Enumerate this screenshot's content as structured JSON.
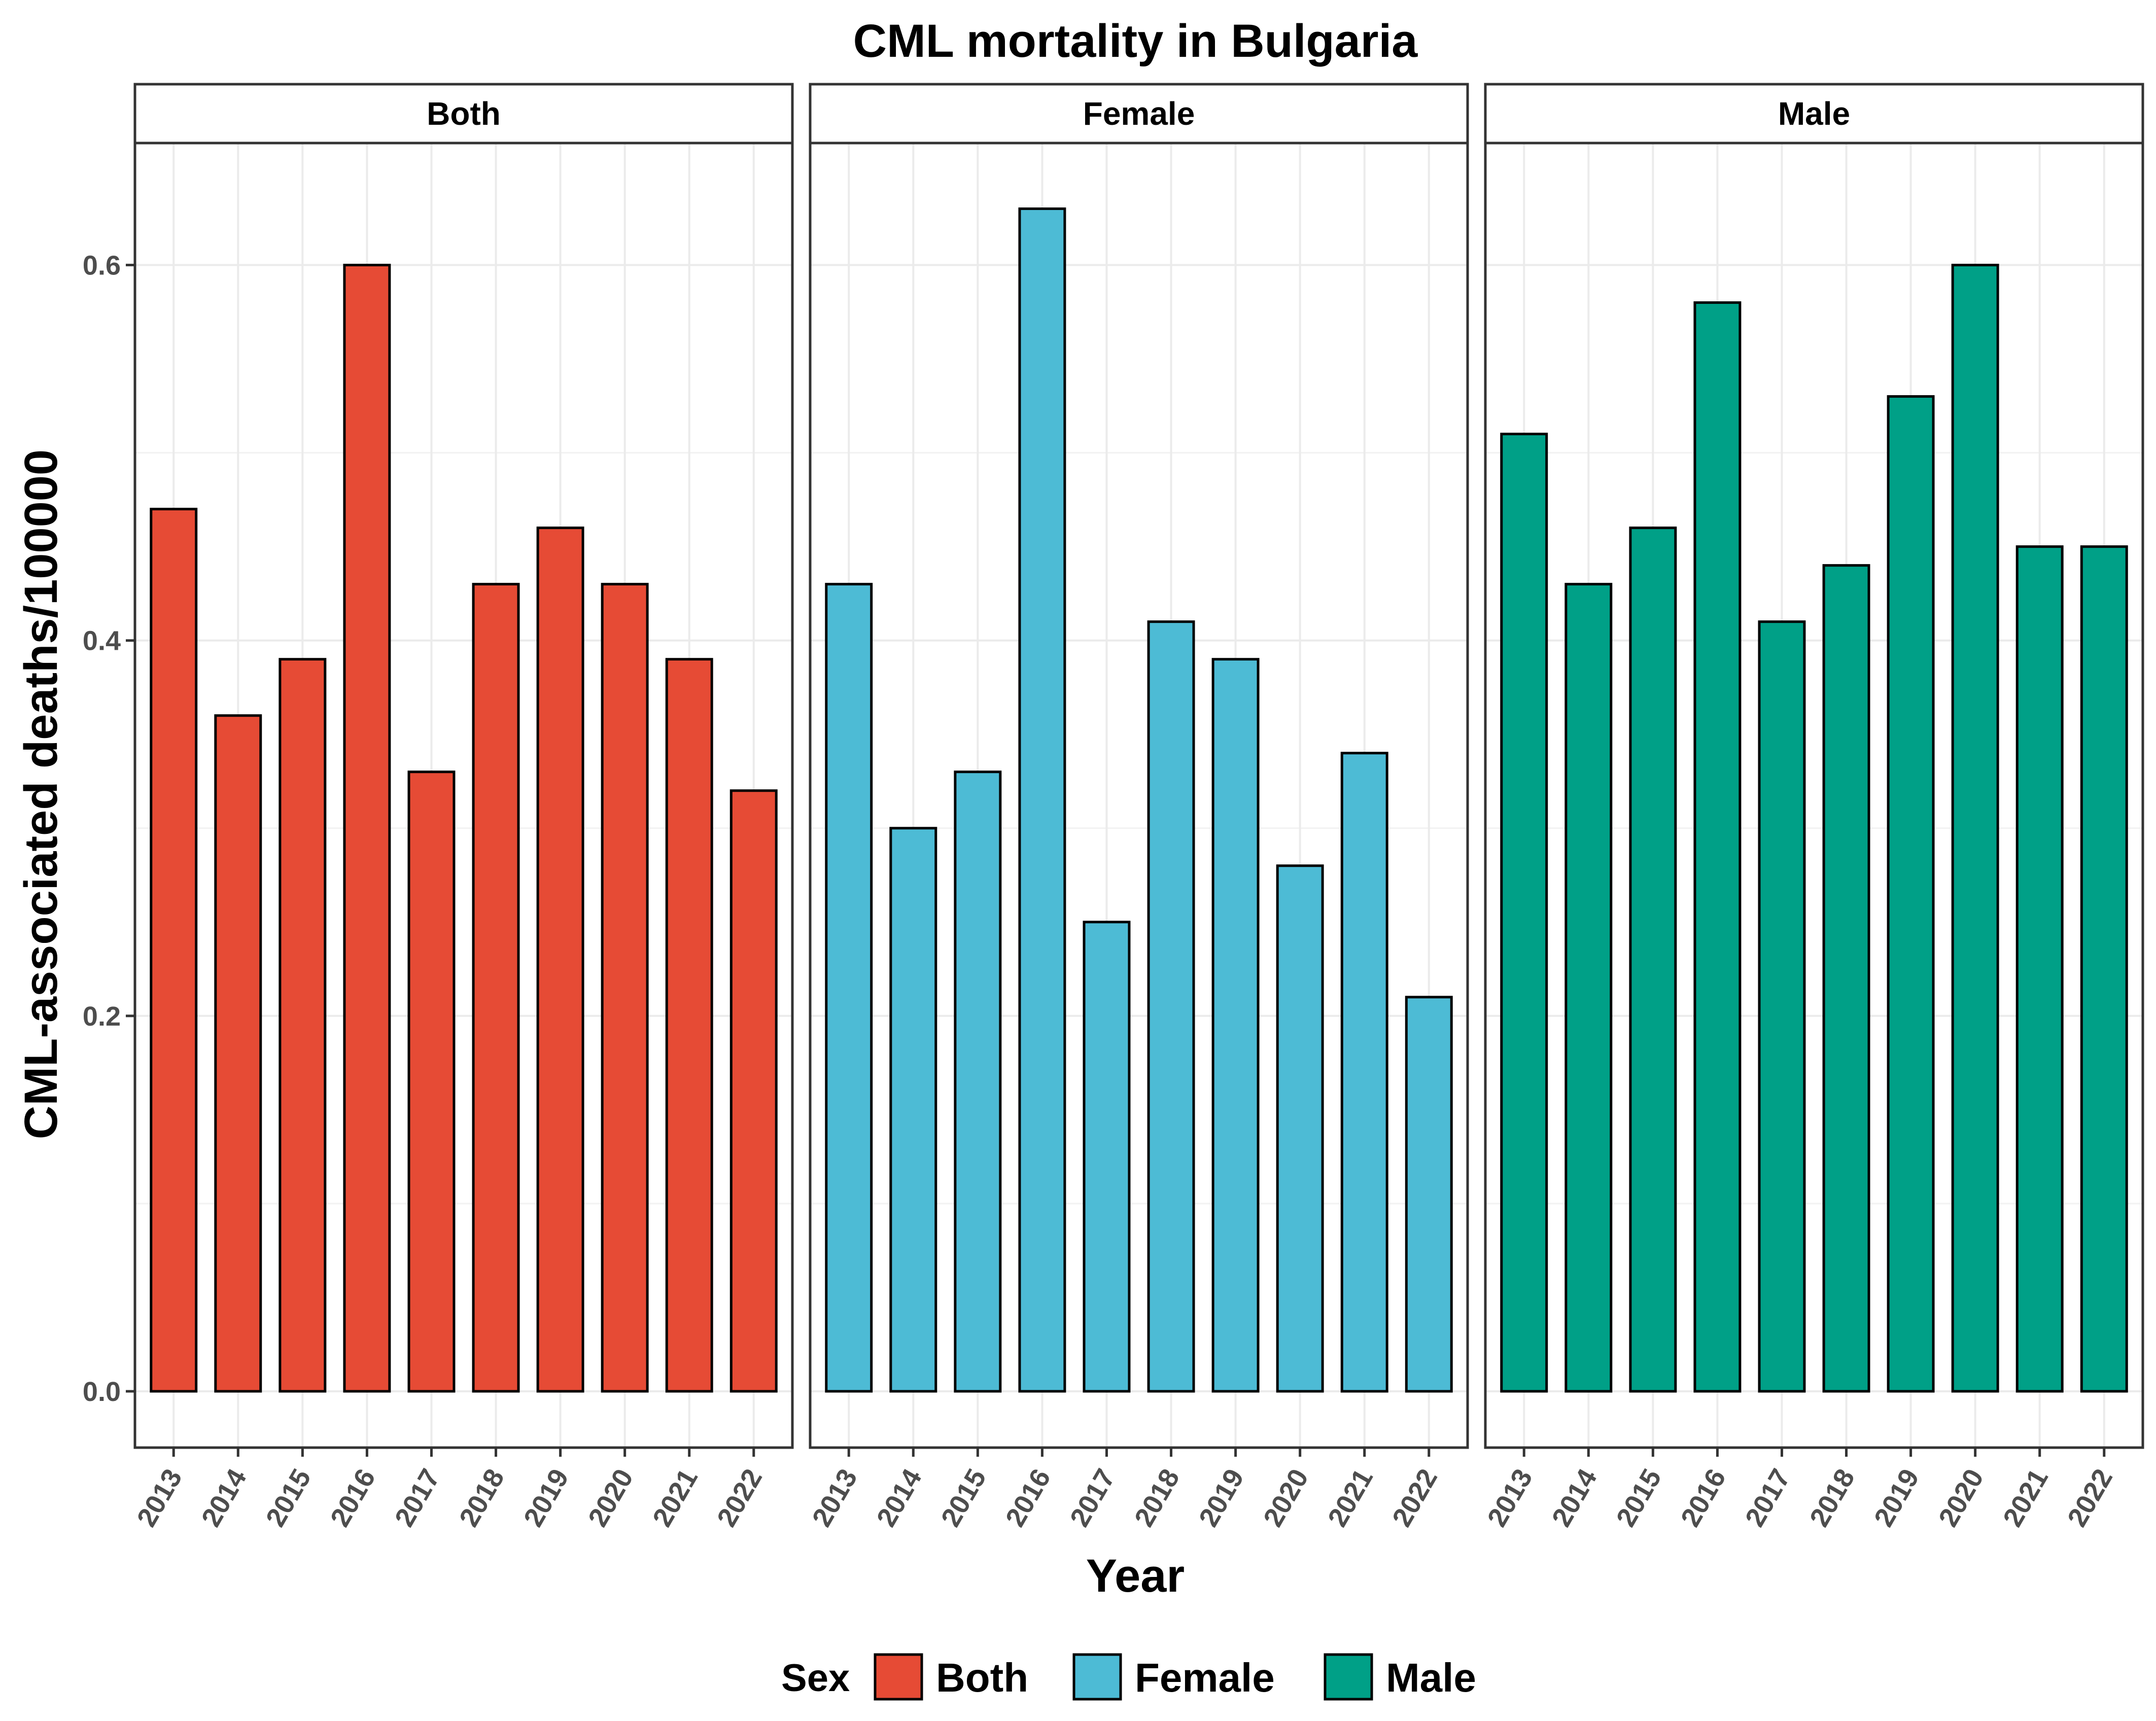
{
  "chart_data": {
    "type": "bar",
    "title": "CML mortality in Bulgaria",
    "xlabel": "Year",
    "ylabel": "CML-associated deaths/100000",
    "ylim": [
      -0.03,
      0.665
    ],
    "yticks": [
      0.0,
      0.2,
      0.4,
      0.6
    ],
    "ytick_labels": [
      "0.0",
      "0.2",
      "0.4",
      "0.6"
    ],
    "categories": [
      "2013",
      "2014",
      "2015",
      "2016",
      "2017",
      "2018",
      "2019",
      "2020",
      "2021",
      "2022"
    ],
    "grid": true,
    "legend": {
      "title": "Sex",
      "position": "bottom",
      "entries": [
        "Both",
        "Female",
        "Male"
      ]
    },
    "series": [
      {
        "name": "Both",
        "color": "#E64B35",
        "values": [
          0.47,
          0.36,
          0.39,
          0.6,
          0.33,
          0.43,
          0.46,
          0.43,
          0.39,
          0.32
        ]
      },
      {
        "name": "Female",
        "color": "#4DBBD5",
        "values": [
          0.43,
          0.3,
          0.33,
          0.63,
          0.25,
          0.41,
          0.39,
          0.28,
          0.34,
          0.21
        ]
      },
      {
        "name": "Male",
        "color": "#00A087",
        "values": [
          0.51,
          0.43,
          0.46,
          0.58,
          0.41,
          0.44,
          0.53,
          0.6,
          0.45,
          0.45
        ]
      }
    ]
  }
}
